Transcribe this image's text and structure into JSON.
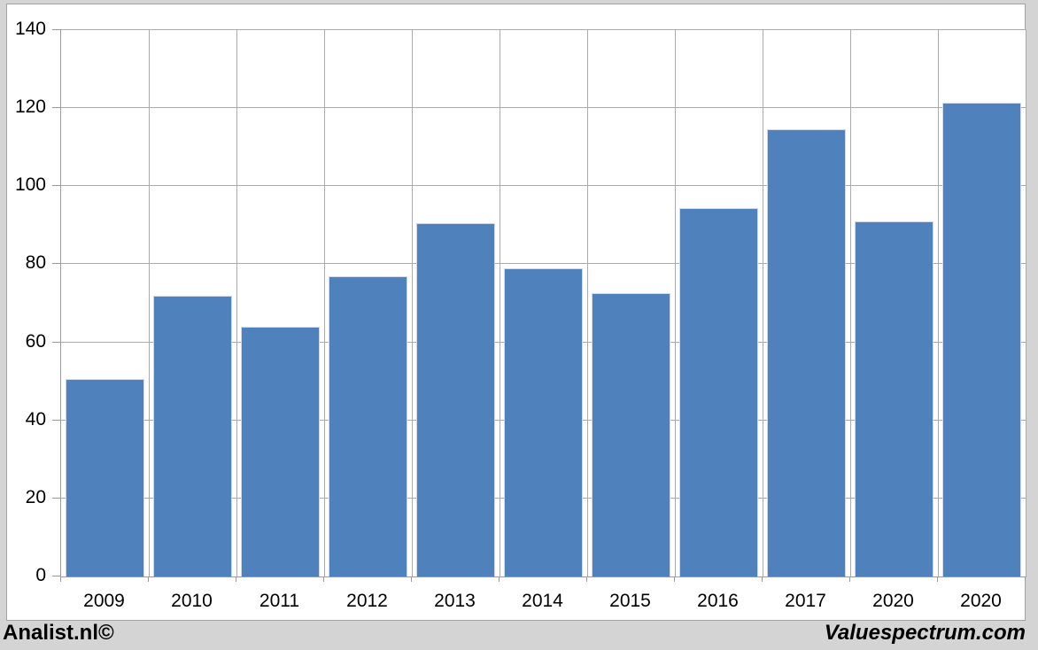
{
  "chart_data": {
    "type": "bar",
    "title": "",
    "xlabel": "",
    "ylabel": "",
    "categories": [
      "2009",
      "2010",
      "2011",
      "2012",
      "2013",
      "2014",
      "2015",
      "2016",
      "2017",
      "2020",
      "2020"
    ],
    "values": [
      50.5,
      72,
      64,
      77,
      90.5,
      79,
      72.5,
      94.5,
      114.5,
      91,
      121.5
    ],
    "ylim": [
      0,
      140
    ],
    "yticks": [
      0,
      20,
      40,
      60,
      80,
      100,
      120,
      140
    ],
    "grid": "on",
    "legend": "none",
    "bar_gap_fraction": 0.1
  },
  "footer": {
    "left_credit": "Analist.nl©",
    "right_credit": "Valuespectrum.com"
  },
  "colors": {
    "outer_background": "#d4d4d4",
    "panel_background": "#ffffff",
    "panel_border": "#a3a3a3",
    "gridline": "#ababab",
    "axis": "#9a9a9a",
    "bar": "#4f81bd",
    "bar_border": "#cdd9ea",
    "text": "#000000"
  }
}
